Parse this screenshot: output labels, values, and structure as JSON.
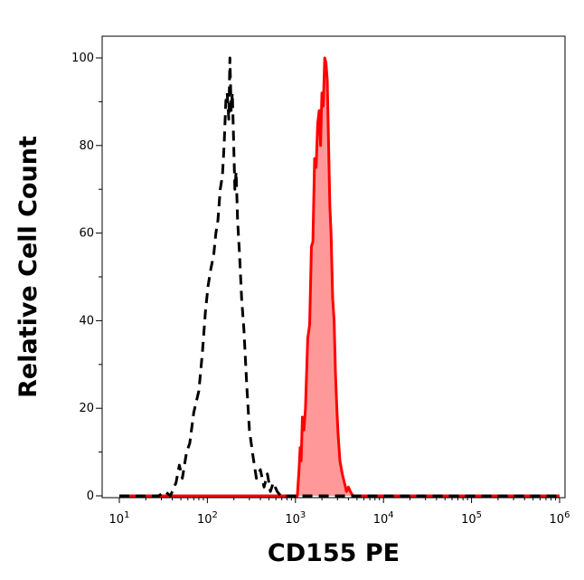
{
  "chart_data": {
    "type": "area",
    "xlabel": "CD155 PE",
    "ylabel": "Relative Cell Count",
    "x_scale": "log",
    "xlim": [
      10,
      1000000
    ],
    "ylim": [
      0,
      100
    ],
    "grid": false,
    "x_ticks": [
      {
        "value": 10,
        "base": "10",
        "exp": "1"
      },
      {
        "value": 100,
        "base": "10",
        "exp": "2"
      },
      {
        "value": 1000,
        "base": "10",
        "exp": "3"
      },
      {
        "value": 10000,
        "base": "10",
        "exp": "4"
      },
      {
        "value": 100000,
        "base": "10",
        "exp": "5"
      },
      {
        "value": 1000000,
        "base": "10",
        "exp": "6"
      }
    ],
    "y_ticks": [
      {
        "value": 0,
        "label": "0"
      },
      {
        "value": 20,
        "label": "20"
      },
      {
        "value": 40,
        "label": "40"
      },
      {
        "value": 60,
        "label": "60"
      },
      {
        "value": 80,
        "label": "80"
      },
      {
        "value": 100,
        "label": "100"
      }
    ],
    "series": [
      {
        "style": "dashed",
        "color": "#000000",
        "fill": "none",
        "x": [
          10,
          28,
          33,
          38,
          44,
          48,
          52,
          58,
          63,
          70,
          80,
          88,
          95,
          102,
          110,
          118,
          125,
          132,
          140,
          148,
          155,
          162,
          168,
          175,
          180,
          186,
          192,
          198,
          205,
          212,
          220,
          232,
          245,
          260,
          280,
          300,
          330,
          360,
          400,
          440,
          480,
          520,
          560,
          620,
          680,
          750,
          1000000
        ],
        "y": [
          0,
          0,
          1,
          0,
          3,
          7,
          4,
          10,
          12,
          19,
          24,
          33,
          42,
          48,
          52,
          55,
          60,
          63,
          70,
          73,
          80,
          90,
          92,
          86,
          100,
          88,
          92,
          82,
          70,
          74,
          63,
          55,
          45,
          38,
          25,
          15,
          9,
          4,
          6,
          2,
          5,
          1,
          3,
          1,
          0,
          0,
          0
        ]
      },
      {
        "style": "solid",
        "color": "#ff0000",
        "fill": "#ff9999",
        "x": [
          10,
          1050,
          1100,
          1130,
          1160,
          1200,
          1250,
          1300,
          1380,
          1450,
          1520,
          1580,
          1650,
          1720,
          1790,
          1860,
          1930,
          2000,
          2070,
          2150,
          2220,
          2300,
          2380,
          2460,
          2540,
          2650,
          2750,
          2850,
          2950,
          3050,
          3200,
          3400,
          3600,
          3800,
          4000,
          4200,
          4500,
          4800,
          5200,
          5600,
          1000000
        ],
        "y": [
          0,
          0,
          6,
          11,
          8,
          18,
          15,
          20,
          36,
          39,
          57,
          58,
          77,
          75,
          85,
          88,
          80,
          92,
          89,
          100,
          99,
          95,
          80,
          66,
          60,
          45,
          40,
          28,
          20,
          14,
          8,
          5,
          3,
          1,
          2,
          1,
          0,
          0,
          0,
          0,
          0
        ]
      }
    ]
  }
}
